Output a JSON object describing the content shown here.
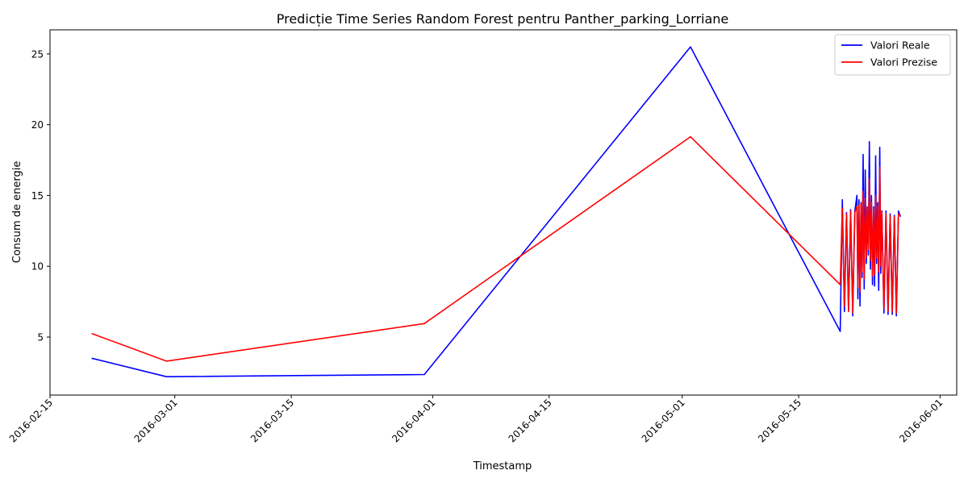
{
  "chart_data": {
    "type": "line",
    "title": "Predicție Time Series Random Forest pentru Panther_parking_Lorriane",
    "xlabel": "Timestamp",
    "ylabel": "Consum de energie",
    "x_axis_type": "date",
    "xlim": [
      "2016-02-15",
      "2016-06-03"
    ],
    "ylim": [
      0.9,
      26.7
    ],
    "x_ticks": [
      "2016-02-15",
      "2016-03-01",
      "2016-03-15",
      "2016-04-01",
      "2016-04-15",
      "2016-05-01",
      "2016-05-15",
      "2016-06-01"
    ],
    "y_ticks": [
      5,
      10,
      15,
      20,
      25
    ],
    "grid": false,
    "legend_position": "top-right",
    "series": [
      {
        "name": "Valori Reale",
        "color": "#0000ff",
        "points": [
          [
            "2016-02-20",
            3.5
          ],
          [
            "2016-02-29",
            2.2
          ],
          [
            "2016-03-31",
            2.35
          ],
          [
            "2016-05-02",
            25.5
          ],
          [
            "2016-05-20",
            5.4
          ],
          [
            "2016-05-20T06:00",
            14.7
          ],
          [
            "2016-05-20T12:00",
            6.8
          ],
          [
            "2016-05-20T18:00",
            13.8
          ],
          [
            "2016-05-21",
            6.9
          ],
          [
            "2016-05-21T06:00",
            14.0
          ],
          [
            "2016-05-21T12:00",
            6.5
          ],
          [
            "2016-05-21T18:00",
            13.9
          ],
          [
            "2016-05-22",
            15.0
          ],
          [
            "2016-05-22T03:00",
            7.7
          ],
          [
            "2016-05-22T06:00",
            14.7
          ],
          [
            "2016-05-22T09:00",
            7.2
          ],
          [
            "2016-05-22T12:00",
            14.5
          ],
          [
            "2016-05-22T15:00",
            9.2
          ],
          [
            "2016-05-22T18:00",
            17.9
          ],
          [
            "2016-05-22T21:00",
            8.4
          ],
          [
            "2016-05-23",
            16.8
          ],
          [
            "2016-05-23T03:00",
            10.2
          ],
          [
            "2016-05-23T06:00",
            14.2
          ],
          [
            "2016-05-23T09:00",
            10.8
          ],
          [
            "2016-05-23T12:00",
            18.8
          ],
          [
            "2016-05-23T15:00",
            9.8
          ],
          [
            "2016-05-23T18:00",
            15.0
          ],
          [
            "2016-05-23T21:00",
            8.7
          ],
          [
            "2016-05-24",
            14.2
          ],
          [
            "2016-05-24T03:00",
            8.6
          ],
          [
            "2016-05-24T06:00",
            17.8
          ],
          [
            "2016-05-24T09:00",
            10.2
          ],
          [
            "2016-05-24T12:00",
            14.5
          ],
          [
            "2016-05-24T15:00",
            8.3
          ],
          [
            "2016-05-24T18:00",
            18.4
          ],
          [
            "2016-05-24T21:00",
            9.5
          ],
          [
            "2016-05-25",
            13.9
          ],
          [
            "2016-05-25T06:00",
            6.7
          ],
          [
            "2016-05-25T12:00",
            13.9
          ],
          [
            "2016-05-25T18:00",
            6.6
          ],
          [
            "2016-05-26",
            13.7
          ],
          [
            "2016-05-26T06:00",
            6.6
          ],
          [
            "2016-05-26T12:00",
            13.6
          ],
          [
            "2016-05-26T18:00",
            6.5
          ],
          [
            "2016-05-27",
            13.9
          ],
          [
            "2016-05-27T06:00",
            13.5
          ]
        ]
      },
      {
        "name": "Valori Prezise",
        "color": "#ff0000",
        "points": [
          [
            "2016-02-20",
            5.25
          ],
          [
            "2016-02-29",
            3.3
          ],
          [
            "2016-03-31",
            5.95
          ],
          [
            "2016-05-02",
            19.15
          ],
          [
            "2016-05-20",
            8.7
          ],
          [
            "2016-05-20T06:00",
            14.1
          ],
          [
            "2016-05-20T12:00",
            7.2
          ],
          [
            "2016-05-20T18:00",
            13.7
          ],
          [
            "2016-05-21",
            6.8
          ],
          [
            "2016-05-21T06:00",
            13.9
          ],
          [
            "2016-05-21T12:00",
            6.7
          ],
          [
            "2016-05-21T18:00",
            13.8
          ],
          [
            "2016-05-22",
            14.2
          ],
          [
            "2016-05-22T03:00",
            8.5
          ],
          [
            "2016-05-22T06:00",
            14.3
          ],
          [
            "2016-05-22T09:00",
            8.2
          ],
          [
            "2016-05-22T12:00",
            14.4
          ],
          [
            "2016-05-22T15:00",
            9.6
          ],
          [
            "2016-05-22T18:00",
            15.3
          ],
          [
            "2016-05-22T21:00",
            9.1
          ],
          [
            "2016-05-23",
            14.8
          ],
          [
            "2016-05-23T03:00",
            10.6
          ],
          [
            "2016-05-23T06:00",
            14.2
          ],
          [
            "2016-05-23T09:00",
            11.2
          ],
          [
            "2016-05-23T12:00",
            16.2
          ],
          [
            "2016-05-23T15:00",
            10.4
          ],
          [
            "2016-05-23T18:00",
            14.5
          ],
          [
            "2016-05-23T21:00",
            9.3
          ],
          [
            "2016-05-24",
            14.0
          ],
          [
            "2016-05-24T03:00",
            9.4
          ],
          [
            "2016-05-24T06:00",
            15.0
          ],
          [
            "2016-05-24T09:00",
            10.6
          ],
          [
            "2016-05-24T12:00",
            14.2
          ],
          [
            "2016-05-24T15:00",
            9.6
          ],
          [
            "2016-05-24T18:00",
            17.0
          ],
          [
            "2016-05-24T21:00",
            10.0
          ],
          [
            "2016-05-25",
            13.8
          ],
          [
            "2016-05-25T06:00",
            7.0
          ],
          [
            "2016-05-25T12:00",
            13.7
          ],
          [
            "2016-05-25T18:00",
            6.8
          ],
          [
            "2016-05-26",
            13.6
          ],
          [
            "2016-05-26T06:00",
            6.8
          ],
          [
            "2016-05-26T12:00",
            13.5
          ],
          [
            "2016-05-26T18:00",
            6.7
          ],
          [
            "2016-05-27",
            13.7
          ],
          [
            "2016-05-27T06:00",
            13.6
          ]
        ]
      }
    ]
  }
}
